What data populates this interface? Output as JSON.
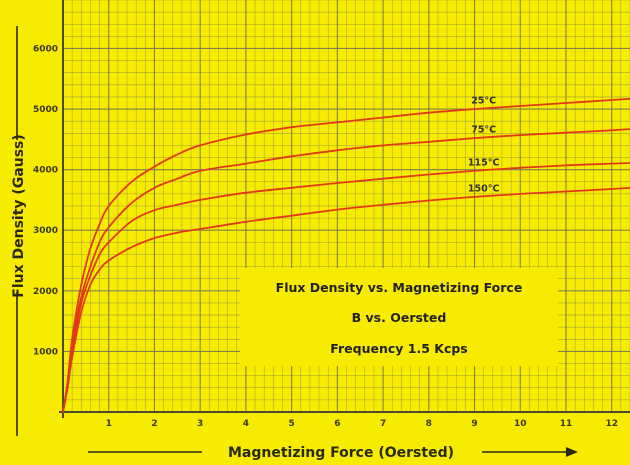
{
  "chart_data": {
    "type": "line",
    "title": [
      "Flux Density vs. Magnetizing Force",
      "B vs. Oersted",
      "Frequency 1.5 Kcps"
    ],
    "xlabel": "Magnetizing Force (Oersted)",
    "ylabel": "Flux Density (Gauss)",
    "xlim": [
      0,
      12.4
    ],
    "ylim": [
      0,
      6800
    ],
    "x_ticks": [
      1,
      2,
      3,
      4,
      5,
      6,
      7,
      8,
      9,
      10,
      11,
      12
    ],
    "y_ticks": [
      1000,
      2000,
      3000,
      4000,
      5000,
      6000
    ],
    "grid": true,
    "series": [
      {
        "name": "25°C",
        "x": [
          0,
          0.1,
          0.2,
          0.4,
          0.6,
          0.8,
          1,
          1.5,
          2,
          2.5,
          3,
          4,
          5,
          6,
          7,
          8,
          9,
          10,
          11,
          12,
          12.4
        ],
        "values": [
          0,
          500,
          1200,
          2100,
          2700,
          3100,
          3400,
          3800,
          4050,
          4250,
          4400,
          4580,
          4700,
          4780,
          4860,
          4940,
          5000,
          5050,
          5100,
          5150,
          5170
        ]
      },
      {
        "name": "75°C",
        "x": [
          0,
          0.1,
          0.2,
          0.4,
          0.6,
          0.8,
          1,
          1.5,
          2,
          2.5,
          3,
          4,
          5,
          6,
          7,
          8,
          9,
          10,
          11,
          12,
          12.4
        ],
        "values": [
          0,
          450,
          1100,
          1900,
          2400,
          2800,
          3050,
          3450,
          3700,
          3850,
          3980,
          4100,
          4220,
          4320,
          4400,
          4460,
          4520,
          4570,
          4610,
          4650,
          4670
        ]
      },
      {
        "name": "115°C",
        "x": [
          0,
          0.1,
          0.2,
          0.4,
          0.6,
          0.8,
          1,
          1.5,
          2,
          2.5,
          3,
          4,
          5,
          6,
          7,
          8,
          9,
          10,
          11,
          12,
          12.4
        ],
        "values": [
          0,
          420,
          1000,
          1800,
          2250,
          2600,
          2800,
          3150,
          3330,
          3420,
          3500,
          3620,
          3700,
          3780,
          3850,
          3920,
          3980,
          4030,
          4070,
          4100,
          4110
        ]
      },
      {
        "name": "150°C",
        "x": [
          0,
          0.1,
          0.2,
          0.4,
          0.6,
          0.8,
          1,
          1.5,
          2,
          2.5,
          3,
          4,
          5,
          6,
          7,
          8,
          9,
          10,
          11,
          12,
          12.4
        ],
        "values": [
          0,
          400,
          900,
          1650,
          2100,
          2350,
          2500,
          2720,
          2870,
          2960,
          3020,
          3140,
          3240,
          3340,
          3420,
          3490,
          3550,
          3600,
          3640,
          3680,
          3700
        ]
      }
    ],
    "colors": {
      "background": "#f7ec00",
      "grid": "#6f6f58",
      "curve": "#e23a14",
      "text": "#2a2a10"
    }
  }
}
